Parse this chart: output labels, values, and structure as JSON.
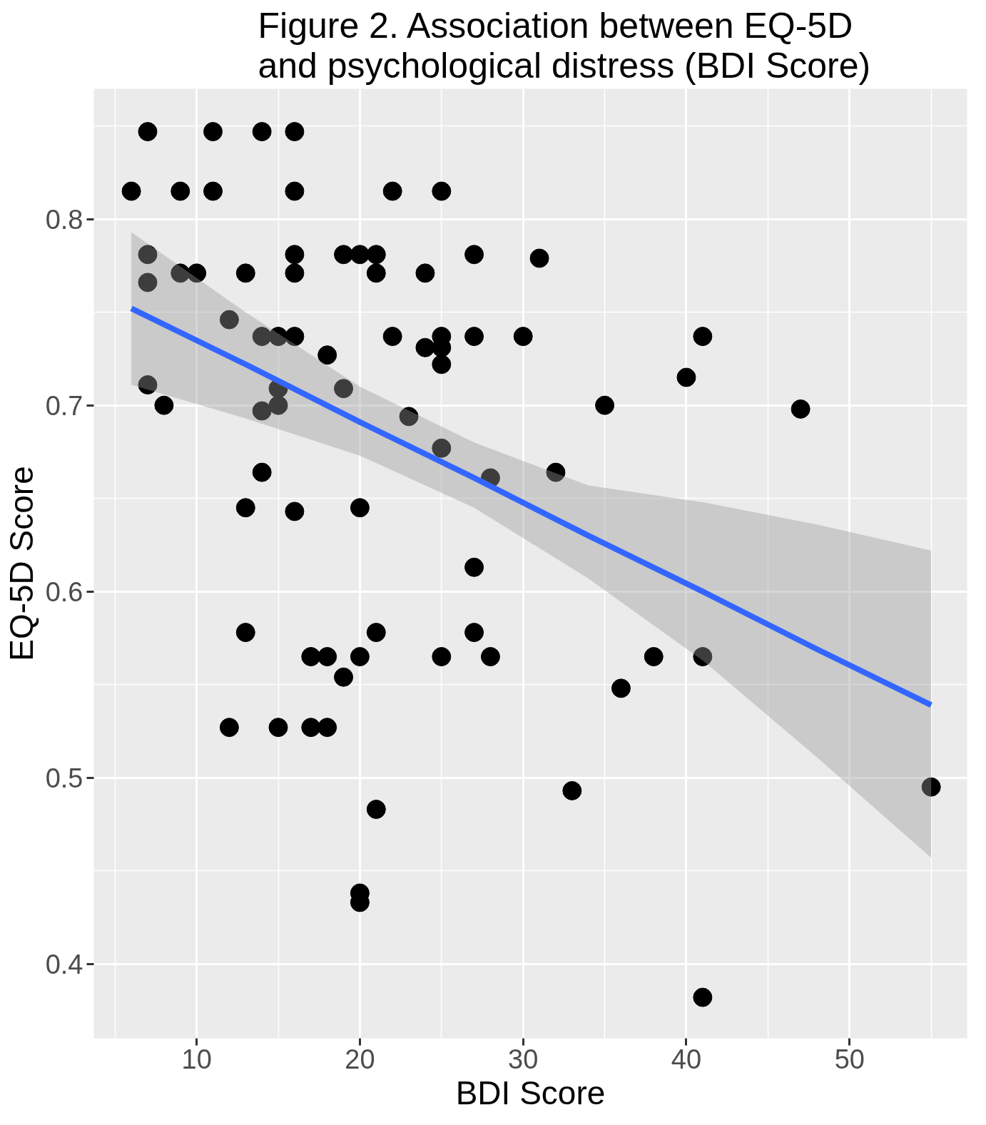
{
  "chart_data": {
    "type": "scatter",
    "title": "Figure 2. Association between EQ-5D\nand psychological distress (BDI Score)",
    "xlabel": "BDI Score",
    "ylabel": "EQ-5D Score",
    "xlim": [
      3.7,
      57.2
    ],
    "ylim": [
      0.36,
      0.87
    ],
    "xticks": [
      10,
      20,
      30,
      40,
      50
    ],
    "yticks": [
      0.4,
      0.5,
      0.6,
      0.7,
      0.8
    ],
    "grid": true,
    "series": [
      {
        "marker": "circle",
        "color": "#000000",
        "x": [
          6,
          7,
          7,
          7,
          7,
          8,
          9,
          9,
          10,
          11,
          11,
          12,
          12,
          13,
          13,
          13,
          14,
          14,
          14,
          14,
          15,
          15,
          15,
          15,
          16,
          16,
          16,
          16,
          16,
          16,
          17,
          17,
          18,
          18,
          18,
          19,
          19,
          19,
          20,
          20,
          20,
          20,
          20,
          21,
          21,
          21,
          21,
          22,
          22,
          23,
          24,
          24,
          25,
          25,
          25,
          25,
          25,
          25,
          27,
          27,
          27,
          27,
          28,
          28,
          30,
          31,
          32,
          33,
          35,
          36,
          38,
          40,
          41,
          41,
          41,
          47,
          55
        ],
        "values": [
          0.815,
          0.847,
          0.781,
          0.766,
          0.711,
          0.7,
          0.815,
          0.771,
          0.771,
          0.847,
          0.815,
          0.746,
          0.527,
          0.771,
          0.645,
          0.578,
          0.847,
          0.737,
          0.697,
          0.664,
          0.737,
          0.7,
          0.709,
          0.527,
          0.847,
          0.815,
          0.781,
          0.771,
          0.737,
          0.643,
          0.565,
          0.527,
          0.727,
          0.565,
          0.527,
          0.781,
          0.709,
          0.554,
          0.781,
          0.645,
          0.565,
          0.438,
          0.433,
          0.781,
          0.771,
          0.578,
          0.483,
          0.815,
          0.737,
          0.694,
          0.771,
          0.731,
          0.815,
          0.737,
          0.731,
          0.722,
          0.677,
          0.565,
          0.781,
          0.737,
          0.613,
          0.578,
          0.661,
          0.565,
          0.737,
          0.779,
          0.664,
          0.493,
          0.7,
          0.548,
          0.565,
          0.715,
          0.737,
          0.565,
          0.382,
          0.698,
          0.495
        ]
      },
      {
        "type": "line",
        "color": "#3366ff",
        "x": [
          6,
          13,
          20,
          27,
          34,
          41,
          48,
          55
        ],
        "values": [
          0.752,
          0.722,
          0.691,
          0.661,
          0.63,
          0.6,
          0.569,
          0.539
        ],
        "lower": [
          0.711,
          0.693,
          0.673,
          0.645,
          0.607,
          0.563,
          0.511,
          0.457
        ],
        "upper": [
          0.793,
          0.75,
          0.71,
          0.68,
          0.657,
          0.648,
          0.636,
          0.622
        ]
      }
    ]
  }
}
